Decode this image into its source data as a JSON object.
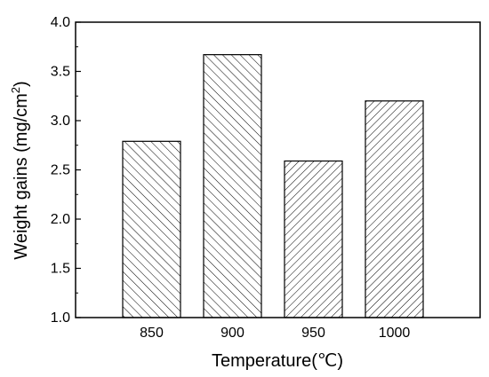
{
  "chart_data": {
    "type": "bar",
    "categories": [
      "850",
      "900",
      "950",
      "1000"
    ],
    "values": [
      2.79,
      3.67,
      2.59,
      3.2
    ],
    "xlabel": "Temperature(℃)",
    "ylabel_main": "Weight gains (mg/cm",
    "ylabel_sup": "2",
    "ylabel_close": ")",
    "ylim": [
      1.0,
      4.0
    ],
    "yticks": [
      "1.0",
      "1.5",
      "2.0",
      "2.5",
      "3.0",
      "3.5",
      "4.0"
    ],
    "grid": false,
    "bar_fill": "hatched",
    "hatch_directions": [
      "forward",
      "forward",
      "backward",
      "backward"
    ],
    "colors": {
      "bar_edge": "#000000",
      "hatch": "#000000",
      "background": "#ffffff"
    }
  }
}
